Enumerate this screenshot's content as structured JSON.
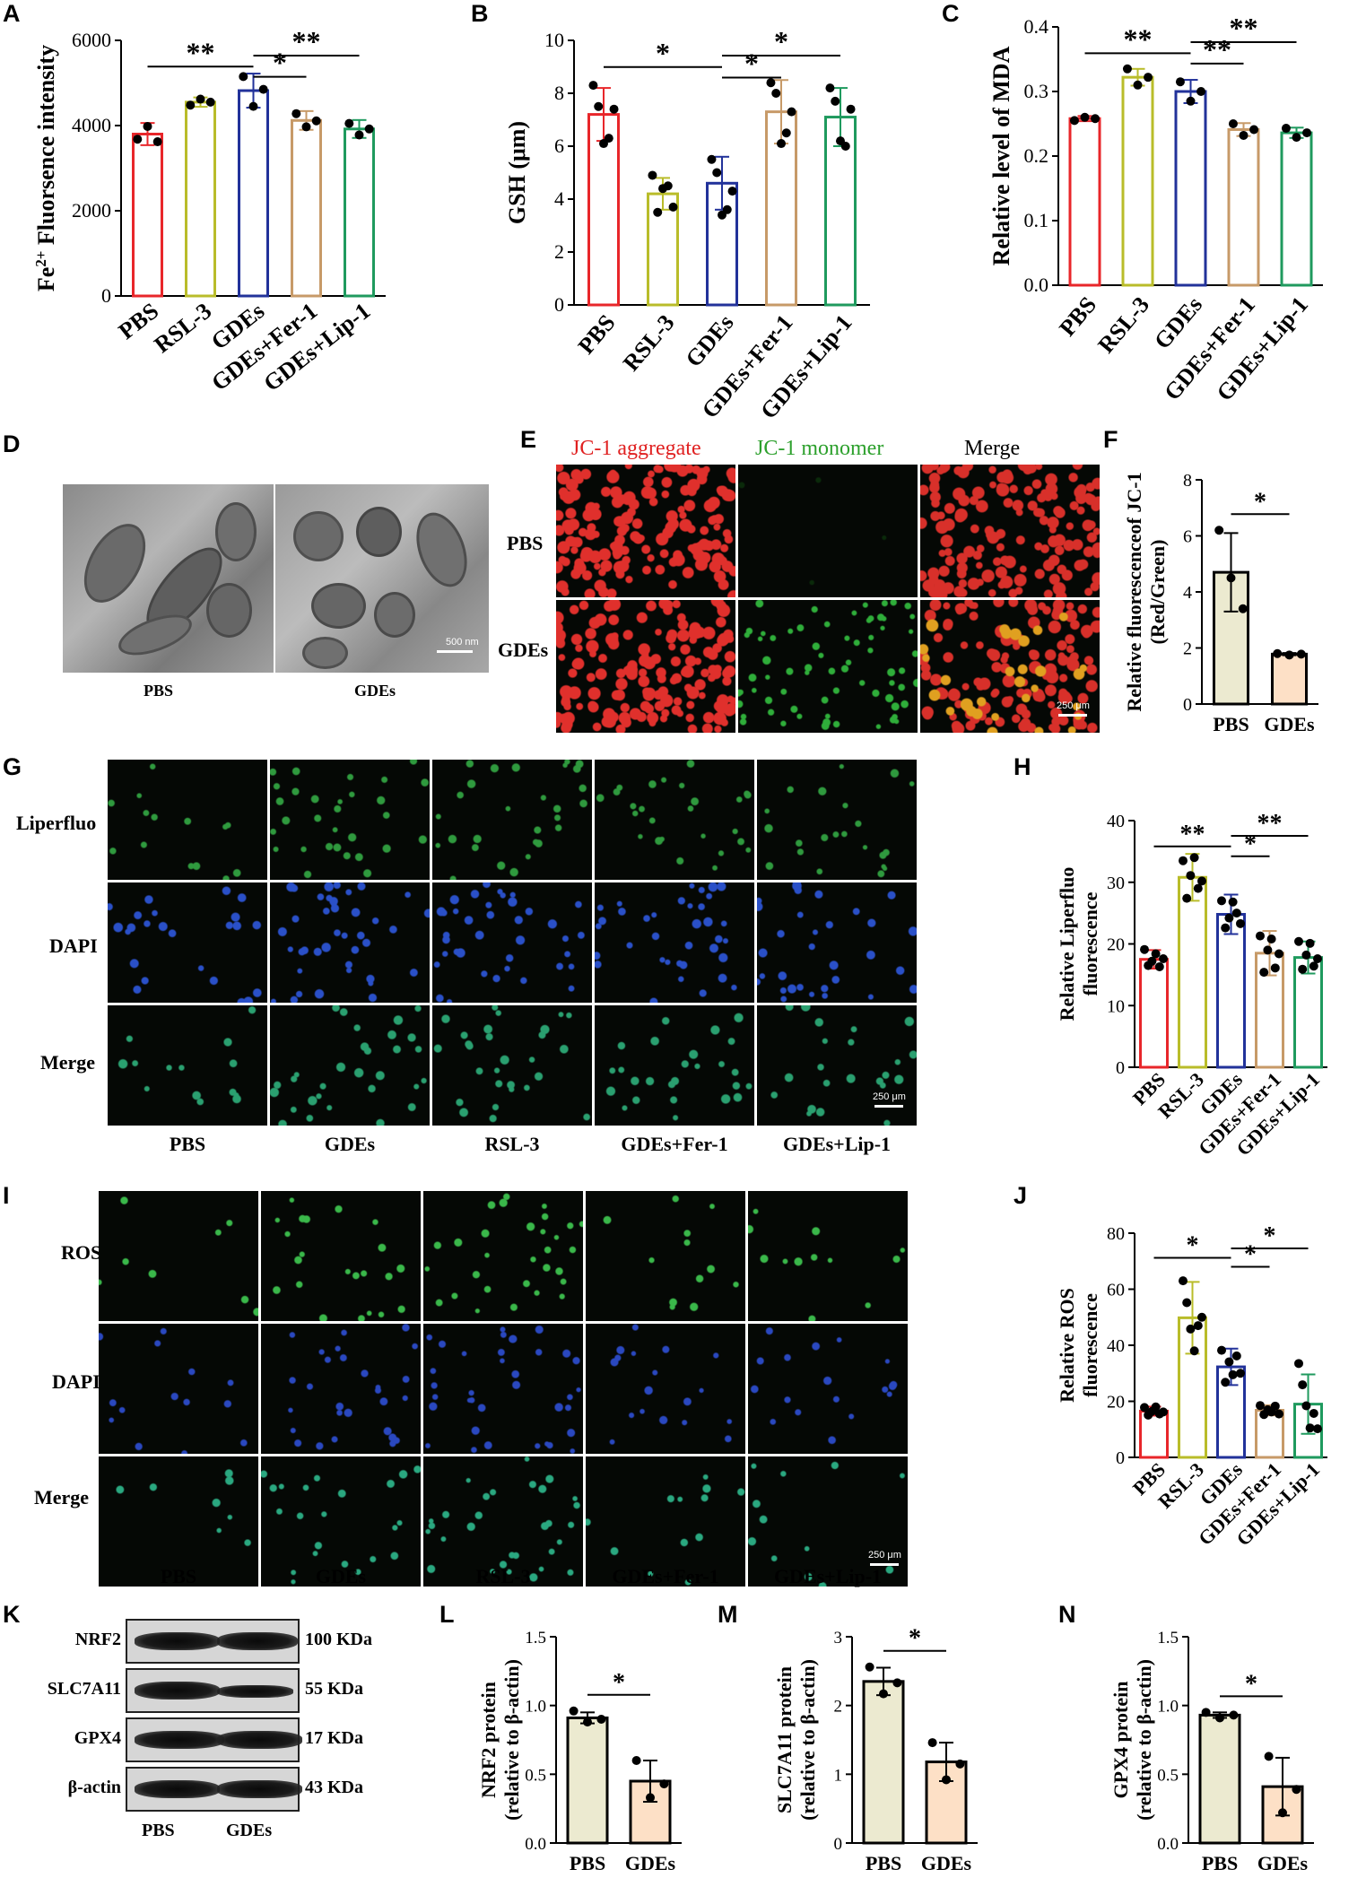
{
  "panels": {
    "A": "A",
    "B": "B",
    "C": "C",
    "D": "D",
    "E": "E",
    "F": "F",
    "G": "G",
    "H": "H",
    "I": "I",
    "J": "J",
    "K": "K",
    "L": "L",
    "M": "M",
    "N": "N"
  },
  "colors": {
    "PBS": "#e8262a",
    "RSL-3": "#b9bc2a",
    "GDEs": "#22329a",
    "GDEs+Fer-1": "#c79a68",
    "GDEs+Lip-1": "#1f9a5e",
    "pbs_fill": "#ecead0",
    "gdes_fill": "#fde0c6"
  },
  "chart_data": [
    {
      "id": "A",
      "type": "bar",
      "categories": [
        "PBS",
        "RSL-3",
        "GDEs",
        "GDEs+Fer-1",
        "GDEs+Lip-1"
      ],
      "values": [
        3800,
        4550,
        4820,
        4120,
        3920
      ],
      "errors": [
        260,
        110,
        400,
        220,
        210
      ],
      "points": [
        [
          3680,
          3980,
          3620
        ],
        [
          4480,
          4620,
          4550
        ],
        [
          5150,
          4450,
          4850
        ],
        [
          4280,
          3970,
          4110
        ],
        [
          4050,
          3780,
          3920
        ]
      ],
      "ylabel_pre": "Fe",
      "ylabel_sup": "2+",
      "ylabel_post": " Fluorsence intensity",
      "ylim": [
        0,
        6000
      ],
      "ticks": [
        "0",
        "2000",
        "4000",
        "6000"
      ],
      "sig": [
        {
          "from": 0,
          "to": 2,
          "label": "**"
        },
        {
          "from": 2,
          "to": 3,
          "label": "*"
        },
        {
          "from": 2,
          "to": 4,
          "label": "**"
        }
      ]
    },
    {
      "id": "B",
      "type": "bar",
      "categories": [
        "PBS",
        "RSL-3",
        "GDEs",
        "GDEs+Fer-1",
        "GDEs+Lip-1"
      ],
      "values": [
        7.2,
        4.2,
        4.6,
        7.3,
        7.1
      ],
      "errors": [
        1.0,
        0.6,
        1.0,
        1.2,
        1.1
      ],
      "points": [
        [
          8.3,
          7.5,
          6.1,
          6.3,
          7.4
        ],
        [
          4.9,
          3.5,
          4.4,
          4.5,
          3.7
        ],
        [
          5.5,
          5.0,
          3.4,
          3.6,
          4.3
        ],
        [
          8.4,
          8.0,
          6.1,
          6.5,
          7.3
        ],
        [
          8.2,
          7.7,
          6.2,
          6.0,
          7.4
        ]
      ],
      "ylabel": "GSH (μm)",
      "ylim": [
        0,
        10
      ],
      "ticks": [
        "0",
        "2",
        "4",
        "6",
        "8",
        "10"
      ],
      "sig": [
        {
          "from": 0,
          "to": 2,
          "label": "*"
        },
        {
          "from": 2,
          "to": 3,
          "label": "*"
        },
        {
          "from": 2,
          "to": 4,
          "label": "*"
        }
      ]
    },
    {
      "id": "C",
      "type": "bar",
      "categories": [
        "PBS",
        "RSL-3",
        "GDEs",
        "GDEs+Fer-1",
        "GDEs+Lip-1"
      ],
      "values": [
        0.258,
        0.322,
        0.3,
        0.241,
        0.236
      ],
      "errors": [
        0.004,
        0.013,
        0.018,
        0.01,
        0.008
      ],
      "points": [
        [
          0.255,
          0.26,
          0.258
        ],
        [
          0.335,
          0.31,
          0.322
        ],
        [
          0.315,
          0.285,
          0.3
        ],
        [
          0.25,
          0.232,
          0.241
        ],
        [
          0.243,
          0.229,
          0.236
        ]
      ],
      "ylabel": "Relative level of MDA",
      "ylim": [
        0,
        0.4
      ],
      "ticks": [
        "0.0",
        "0.1",
        "0.2",
        "0.3",
        "0.4"
      ],
      "sig": [
        {
          "from": 0,
          "to": 2,
          "label": "**"
        },
        {
          "from": 2,
          "to": 3,
          "label": "**"
        },
        {
          "from": 2,
          "to": 4,
          "label": "**"
        }
      ]
    },
    {
      "id": "F",
      "type": "bar",
      "categories": [
        "PBS",
        "GDEs"
      ],
      "values": [
        4.7,
        1.78
      ],
      "errors": [
        1.4,
        0.04
      ],
      "points": [
        [
          6.2,
          4.5,
          3.4
        ],
        [
          1.8,
          1.75,
          1.78
        ]
      ],
      "ylabel_lines": [
        "Relative fluorescenceof JC-1",
        "(Red/Green)"
      ],
      "ylim": [
        0,
        8
      ],
      "ticks": [
        "0",
        "2",
        "4",
        "6",
        "8"
      ],
      "sig": [
        {
          "from": 0,
          "to": 1,
          "label": "*"
        }
      ]
    },
    {
      "id": "H",
      "type": "bar",
      "categories": [
        "PBS",
        "RSL-3",
        "GDEs",
        "GDEs+Fer-1",
        "GDEs+Lip-1"
      ],
      "values": [
        17.5,
        30.8,
        24.8,
        18.5,
        17.8
      ],
      "errors": [
        1.5,
        3.8,
        3.2,
        3.6,
        2.6
      ],
      "points": [
        [
          19.1,
          16.5,
          17.2,
          18.4,
          16.3,
          17.6
        ],
        [
          33.5,
          27.4,
          31.1,
          34.0,
          29.0,
          30.2
        ],
        [
          27.0,
          22.6,
          24.2,
          26.8,
          25.0,
          23.3
        ],
        [
          21.3,
          15.4,
          19.0,
          20.8,
          16.1,
          18.4
        ],
        [
          20.4,
          15.9,
          18.2,
          20.1,
          16.4,
          17.6
        ]
      ],
      "ylabel_lines": [
        "Relative Liperfluo",
        "fluorescence"
      ],
      "ylim": [
        0,
        40
      ],
      "ticks": [
        "0",
        "10",
        "20",
        "30",
        "40"
      ],
      "sig": [
        {
          "from": 0,
          "to": 2,
          "label": "**"
        },
        {
          "from": 2,
          "to": 3,
          "label": "*"
        },
        {
          "from": 2,
          "to": 4,
          "label": "**"
        }
      ]
    },
    {
      "id": "J",
      "type": "bar",
      "categories": [
        "PBS",
        "RSL-3",
        "GDEs",
        "GDEs+Fer-1",
        "GDEs+Lip-1"
      ],
      "values": [
        16.5,
        49.8,
        32.3,
        16.8,
        19.0
      ],
      "errors": [
        1.6,
        12.8,
        6.5,
        1.8,
        10.6
      ],
      "points": [
        [
          17.8,
          15.1,
          16.4,
          18.0,
          15.5,
          16.2
        ],
        [
          63.0,
          55.2,
          45.8,
          38.0,
          47.0,
          50.0
        ],
        [
          38.2,
          26.8,
          34.1,
          29.5,
          36.2,
          30.0
        ],
        [
          18.5,
          15.3,
          17.0,
          16.2,
          18.3,
          15.5
        ],
        [
          33.5,
          25.9,
          18.4,
          10.5,
          15.7,
          10.2
        ]
      ],
      "ylabel_lines": [
        "Relative ROS",
        "fluorescence"
      ],
      "ylim": [
        0,
        80
      ],
      "ticks": [
        "0",
        "20",
        "40",
        "60",
        "80"
      ],
      "sig": [
        {
          "from": 0,
          "to": 2,
          "label": "*"
        },
        {
          "from": 2,
          "to": 3,
          "label": "*"
        },
        {
          "from": 2,
          "to": 4,
          "label": "*"
        }
      ]
    },
    {
      "id": "L",
      "type": "bar",
      "categories": [
        "PBS",
        "GDEs"
      ],
      "values": [
        0.91,
        0.45
      ],
      "errors": [
        0.04,
        0.15
      ],
      "points": [
        [
          0.96,
          0.88,
          0.9
        ],
        [
          0.6,
          0.33,
          0.43
        ]
      ],
      "ylabel_lines": [
        "NRF2 protein",
        "(relative to β-actin)"
      ],
      "ylim": [
        0,
        1.5
      ],
      "ticks": [
        "0.0",
        "0.5",
        "1.0",
        "1.5"
      ],
      "sig": [
        {
          "from": 0,
          "to": 1,
          "label": "*"
        }
      ]
    },
    {
      "id": "M",
      "type": "bar",
      "categories": [
        "PBS",
        "GDEs"
      ],
      "values": [
        2.35,
        1.18
      ],
      "errors": [
        0.2,
        0.28
      ],
      "points": [
        [
          2.56,
          2.17,
          2.33
        ],
        [
          1.46,
          0.92,
          1.15
        ]
      ],
      "ylabel_lines": [
        "SLC7A11 protein",
        "(relative to β-actin)"
      ],
      "ylim": [
        0,
        3
      ],
      "ticks": [
        "0",
        "1",
        "2",
        "3"
      ],
      "sig": [
        {
          "from": 0,
          "to": 1,
          "label": "*"
        }
      ]
    },
    {
      "id": "N",
      "type": "bar",
      "categories": [
        "PBS",
        "GDEs"
      ],
      "values": [
        0.93,
        0.41
      ],
      "errors": [
        0.02,
        0.21
      ],
      "points": [
        [
          0.95,
          0.91,
          0.93
        ],
        [
          0.63,
          0.22,
          0.39
        ]
      ],
      "ylabel_lines": [
        "GPX4 protein",
        "(relative to β-actin)"
      ],
      "ylim": [
        0,
        1.5
      ],
      "ticks": [
        "0.0",
        "0.5",
        "1.0",
        "1.5"
      ],
      "sig": [
        {
          "from": 0,
          "to": 1,
          "label": "*"
        }
      ]
    }
  ],
  "tem": {
    "labels": [
      "PBS",
      "GDEs"
    ],
    "scale": "500 nm"
  },
  "jc1": {
    "headers": [
      "JC-1 aggregate",
      "JC-1 monomer",
      "Merge"
    ],
    "rows": [
      "PBS",
      "GDEs"
    ],
    "scale": "250 μm"
  },
  "liperfluo": {
    "rows": [
      "Liperfluo",
      "DAPI",
      "Merge"
    ],
    "cols": [
      "PBS",
      "GDEs",
      "RSL-3",
      "GDEs+Fer-1",
      "GDEs+Lip-1"
    ],
    "scale": "250 μm"
  },
  "ros": {
    "rows": [
      "ROS",
      "DAPI",
      "Merge"
    ],
    "cols": [
      "PBS",
      "GDEs",
      "RSL-3",
      "GDEs+Fer-1",
      "GDEs+Lip-1"
    ],
    "scale": "250 μm"
  },
  "western": {
    "proteins": [
      "NRF2",
      "SLC7A11",
      "GPX4",
      "β-actin"
    ],
    "sizes": [
      "100 KDa",
      "55 KDa",
      "17 KDa",
      "43 KDa"
    ],
    "lanes": [
      "PBS",
      "GDEs"
    ]
  }
}
